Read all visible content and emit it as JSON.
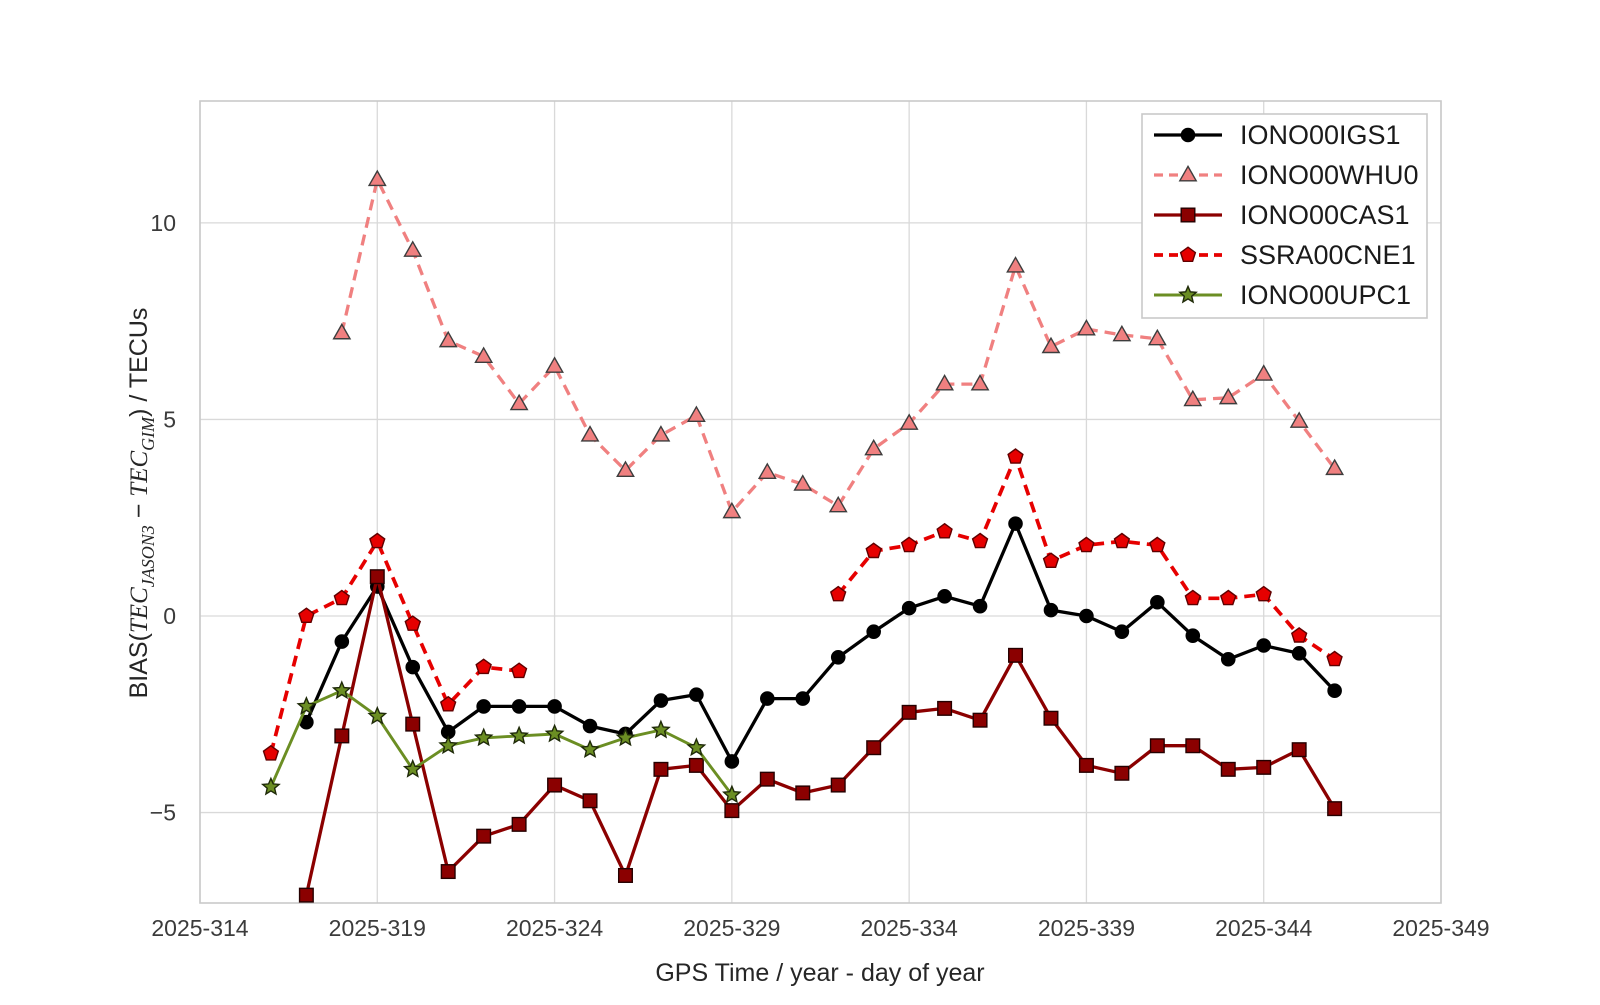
{
  "figure": {
    "title": "",
    "background_color": "#ffffff",
    "grid_color": "#d9d9d9",
    "spine_color": "#c9c9c9",
    "ylabel_parts": {
      "prefix": "BIAS(",
      "tec1": "TEC",
      "sub1": "JASON3",
      "minus": " − ",
      "tec2": "TEC",
      "sub2": "GIM",
      "suffix": ") / TECUs"
    }
  },
  "chart_data": {
    "type": "line",
    "title": "",
    "xlabel": "GPS Time / year - day of year",
    "ylabel": "BIAS(TEC_JASON3 − TEC_GIM) / TECUs",
    "grid": true,
    "legend_position": "upper right",
    "xlim": [
      314,
      349
    ],
    "ylim": [
      -7.3,
      13.1
    ],
    "x_tick_positions": [
      314,
      319,
      324,
      329,
      334,
      339,
      344,
      349
    ],
    "x_tick_labels": [
      "2025-314",
      "2025-319",
      "2025-324",
      "2025-329",
      "2025-334",
      "2025-339",
      "2025-344",
      "2025-349"
    ],
    "y_tick_positions": [
      -5,
      0,
      5,
      10
    ],
    "y_tick_labels": [
      "−5",
      "0",
      "5",
      "10"
    ],
    "x": [
      316,
      317,
      318,
      319,
      320,
      321,
      322,
      323,
      324,
      325,
      326,
      327,
      328,
      329,
      330,
      331,
      332,
      333,
      334,
      335,
      336,
      337,
      338,
      339,
      340,
      341,
      342,
      343,
      344,
      345,
      346
    ],
    "series": [
      {
        "name": "IONO00IGS1",
        "color": "#000000",
        "line_style": "solid",
        "line_width": 3.3,
        "marker": "circle",
        "marker_face": "#000000",
        "marker_edge": "#000000",
        "values": [
          null,
          -2.7,
          -0.65,
          0.75,
          -1.3,
          -2.95,
          -2.3,
          -2.3,
          -2.3,
          -2.8,
          -3.0,
          -2.15,
          -2.0,
          -3.7,
          -2.1,
          -2.1,
          -1.05,
          -0.4,
          0.2,
          0.5,
          0.25,
          2.35,
          0.15,
          0.0,
          -0.4,
          0.35,
          -0.5,
          -1.1,
          -0.75,
          -0.95,
          -1.9
        ]
      },
      {
        "name": "IONO00WHU0",
        "color": "#f08080",
        "line_style": "dashed",
        "line_width": 3.3,
        "marker": "triangle",
        "marker_face": "#f08080",
        "marker_edge": "#3d3d3d",
        "values": [
          null,
          null,
          7.2,
          11.1,
          9.3,
          7.0,
          6.6,
          5.4,
          6.35,
          4.6,
          3.7,
          4.6,
          5.1,
          2.65,
          3.65,
          3.35,
          2.8,
          4.25,
          4.9,
          5.9,
          5.9,
          8.9,
          6.85,
          7.3,
          7.15,
          7.05,
          5.5,
          5.55,
          6.15,
          4.95,
          3.75
        ]
      },
      {
        "name": "IONO00CAS1",
        "color": "#8b0000",
        "line_style": "solid",
        "line_width": 3.3,
        "marker": "square",
        "marker_face": "#8b0000",
        "marker_edge": "#250000",
        "values": [
          null,
          -7.1,
          -3.05,
          1.0,
          -2.75,
          -6.5,
          -5.6,
          -5.3,
          -4.3,
          -4.7,
          -6.6,
          -3.9,
          -3.8,
          -4.95,
          -4.15,
          -4.5,
          -4.3,
          -3.35,
          -2.45,
          -2.35,
          -2.65,
          -1.0,
          -2.6,
          -3.8,
          -4.0,
          -3.3,
          -3.3,
          -3.9,
          -3.85,
          -3.4,
          -4.9
        ]
      },
      {
        "name": "SSRA00CNE1",
        "color": "#e60000",
        "line_style": "dashed",
        "line_width": 3.7,
        "marker": "pentagon",
        "marker_face": "#e60000",
        "marker_edge": "#600000",
        "values": [
          -3.5,
          0.0,
          0.45,
          1.9,
          -0.2,
          -2.25,
          -1.3,
          -1.4,
          null,
          null,
          null,
          null,
          null,
          null,
          null,
          null,
          0.55,
          1.65,
          1.8,
          2.15,
          1.9,
          4.05,
          1.4,
          1.8,
          1.9,
          1.8,
          0.45,
          0.45,
          0.55,
          -0.5,
          -1.1
        ]
      },
      {
        "name": "IONO00UPC1",
        "color": "#6b8e23",
        "line_style": "solid",
        "line_width": 2.9,
        "marker": "star",
        "marker_face": "#6b8e23",
        "marker_edge": "#1f2a09",
        "values": [
          -4.35,
          -2.3,
          -1.9,
          -2.55,
          -3.9,
          -3.3,
          -3.1,
          -3.05,
          -3.0,
          -3.4,
          -3.1,
          -2.9,
          -3.35,
          -4.55,
          null,
          null,
          null,
          null,
          null,
          null,
          null,
          null,
          null,
          null,
          null,
          null,
          null,
          null,
          null,
          null,
          null
        ]
      }
    ]
  }
}
